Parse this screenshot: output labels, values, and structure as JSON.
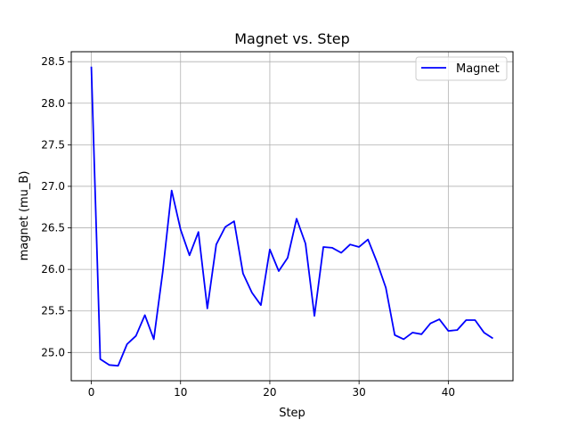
{
  "chart_data": {
    "type": "line",
    "title": "Magnet vs. Step",
    "xlabel": "Step",
    "ylabel": "magnet (mu_B)",
    "xlim": [
      -2.25,
      47.25
    ],
    "ylim": [
      24.66,
      28.62
    ],
    "xticks": [
      0,
      10,
      20,
      30,
      40
    ],
    "yticks": [
      25.0,
      25.5,
      26.0,
      26.5,
      27.0,
      27.5,
      28.0,
      28.5
    ],
    "xtick_labels": [
      "0",
      "10",
      "20",
      "30",
      "40"
    ],
    "ytick_labels": [
      "25.0",
      "25.5",
      "26.0",
      "26.5",
      "27.0",
      "27.5",
      "28.0",
      "28.5"
    ],
    "grid": true,
    "legend_position": "top-right",
    "series": [
      {
        "name": "Magnet",
        "color": "#0000ff",
        "x": [
          0,
          1,
          2,
          3,
          4,
          5,
          6,
          7,
          8,
          9,
          10,
          11,
          12,
          13,
          14,
          15,
          16,
          17,
          18,
          19,
          20,
          21,
          22,
          23,
          24,
          25,
          26,
          27,
          28,
          29,
          30,
          31,
          32,
          33,
          34,
          35,
          36,
          37,
          38,
          39,
          40,
          41,
          42,
          43,
          44,
          45
        ],
        "y": [
          28.44,
          24.92,
          24.85,
          24.84,
          25.1,
          25.2,
          25.45,
          25.16,
          25.97,
          26.95,
          26.48,
          26.17,
          26.45,
          25.53,
          26.3,
          26.51,
          26.58,
          25.95,
          25.72,
          25.57,
          26.24,
          25.98,
          26.14,
          26.61,
          26.31,
          25.44,
          26.27,
          26.26,
          26.2,
          26.3,
          26.27,
          26.36,
          26.09,
          25.78,
          25.21,
          25.16,
          25.24,
          25.22,
          25.35,
          25.4,
          25.26,
          25.27,
          25.39,
          25.39,
          25.24,
          25.17
        ]
      }
    ]
  }
}
